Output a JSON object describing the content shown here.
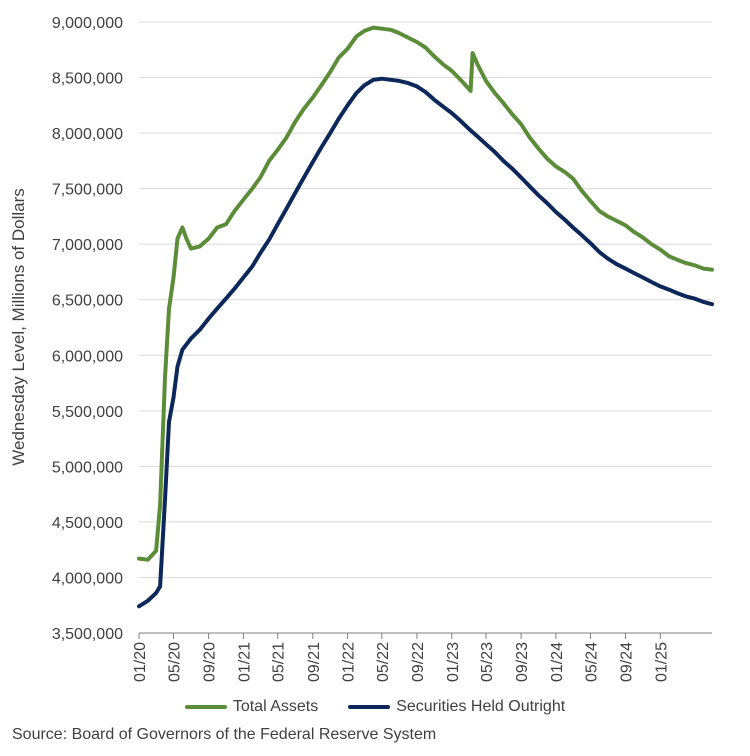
{
  "chart_data": {
    "type": "line",
    "title": "",
    "ylabel": "Wednesday Level, Millions of Dollars",
    "xlabel": "",
    "ylim": [
      3500000,
      9000000
    ],
    "yticks": [
      3500000,
      4000000,
      4500000,
      5000000,
      5500000,
      6000000,
      6500000,
      7000000,
      7500000,
      8000000,
      8500000,
      9000000
    ],
    "ytick_labels": [
      "3,500,000",
      "4,000,000",
      "4,500,000",
      "5,000,000",
      "5,500,000",
      "6,000,000",
      "6,500,000",
      "7,000,000",
      "7,500,000",
      "8,000,000",
      "8,500,000",
      "9,000,000"
    ],
    "xlim": [
      "2020-01",
      "2025-07"
    ],
    "xticks": [
      "2020-01",
      "2020-05",
      "2020-09",
      "2021-01",
      "2021-05",
      "2021-09",
      "2022-01",
      "2022-05",
      "2022-09",
      "2023-01",
      "2023-05",
      "2023-09",
      "2024-01",
      "2024-05",
      "2024-09",
      "2025-01"
    ],
    "xtick_labels": [
      "01/20",
      "05/20",
      "09/20",
      "01/21",
      "05/21",
      "09/21",
      "01/22",
      "05/22",
      "09/22",
      "01/23",
      "05/23",
      "09/23",
      "01/24",
      "05/24",
      "09/24",
      "01/25"
    ],
    "grid": "horizontal",
    "legend_position": "bottom",
    "series": [
      {
        "name": "Total Assets",
        "color": "#5b8c38",
        "x": [
          "2020-01-01",
          "2020-02-01",
          "2020-03-01",
          "2020-03-15",
          "2020-04-01",
          "2020-04-15",
          "2020-05-01",
          "2020-05-15",
          "2020-06-01",
          "2020-06-15",
          "2020-07-01",
          "2020-08-01",
          "2020-09-01",
          "2020-10-01",
          "2020-11-01",
          "2020-12-01",
          "2021-01-01",
          "2021-02-01",
          "2021-03-01",
          "2021-04-01",
          "2021-05-01",
          "2021-06-01",
          "2021-07-01",
          "2021-08-01",
          "2021-09-01",
          "2021-10-01",
          "2021-11-01",
          "2021-12-01",
          "2022-01-01",
          "2022-02-01",
          "2022-03-01",
          "2022-04-01",
          "2022-05-01",
          "2022-06-01",
          "2022-07-01",
          "2022-08-01",
          "2022-09-01",
          "2022-10-01",
          "2022-11-01",
          "2022-12-01",
          "2023-01-01",
          "2023-02-01",
          "2023-03-08",
          "2023-03-15",
          "2023-04-01",
          "2023-05-01",
          "2023-06-01",
          "2023-07-01",
          "2023-08-01",
          "2023-09-01",
          "2023-10-01",
          "2023-11-01",
          "2023-12-01",
          "2024-01-01",
          "2024-02-01",
          "2024-03-01",
          "2024-04-01",
          "2024-05-01",
          "2024-06-01",
          "2024-07-01",
          "2024-08-01",
          "2024-09-01",
          "2024-10-01",
          "2024-11-01",
          "2024-12-01",
          "2025-01-01",
          "2025-02-01",
          "2025-03-01",
          "2025-04-01",
          "2025-05-01",
          "2025-06-01",
          "2025-07-01"
        ],
        "values": [
          4170000,
          4160000,
          4240000,
          4650000,
          5800000,
          6420000,
          6700000,
          7050000,
          7150000,
          7050000,
          6960000,
          6980000,
          7050000,
          7150000,
          7180000,
          7300000,
          7400000,
          7500000,
          7600000,
          7750000,
          7850000,
          7960000,
          8100000,
          8220000,
          8320000,
          8430000,
          8550000,
          8680000,
          8760000,
          8870000,
          8920000,
          8950000,
          8940000,
          8930000,
          8900000,
          8860000,
          8820000,
          8770000,
          8690000,
          8620000,
          8560000,
          8480000,
          8380000,
          8720000,
          8620000,
          8470000,
          8360000,
          8270000,
          8170000,
          8080000,
          7960000,
          7860000,
          7770000,
          7700000,
          7650000,
          7590000,
          7480000,
          7390000,
          7300000,
          7250000,
          7210000,
          7170000,
          7110000,
          7060000,
          7000000,
          6950000,
          6890000,
          6860000,
          6830000,
          6810000,
          6780000,
          6770000
        ]
      },
      {
        "name": "Securities Held Outright",
        "color": "#0c2759",
        "x": [
          "2020-01-01",
          "2020-02-01",
          "2020-03-01",
          "2020-03-15",
          "2020-04-01",
          "2020-04-15",
          "2020-05-01",
          "2020-05-15",
          "2020-06-01",
          "2020-07-01",
          "2020-08-01",
          "2020-09-01",
          "2020-10-01",
          "2020-11-01",
          "2020-12-01",
          "2021-01-01",
          "2021-02-01",
          "2021-03-01",
          "2021-04-01",
          "2021-05-01",
          "2021-06-01",
          "2021-07-01",
          "2021-08-01",
          "2021-09-01",
          "2021-10-01",
          "2021-11-01",
          "2021-12-01",
          "2022-01-01",
          "2022-02-01",
          "2022-03-01",
          "2022-04-01",
          "2022-05-01",
          "2022-06-01",
          "2022-07-01",
          "2022-08-01",
          "2022-09-01",
          "2022-10-01",
          "2022-11-01",
          "2022-12-01",
          "2023-01-01",
          "2023-02-01",
          "2023-03-01",
          "2023-04-01",
          "2023-05-01",
          "2023-06-01",
          "2023-07-01",
          "2023-08-01",
          "2023-09-01",
          "2023-10-01",
          "2023-11-01",
          "2023-12-01",
          "2024-01-01",
          "2024-02-01",
          "2024-03-01",
          "2024-04-01",
          "2024-05-01",
          "2024-06-01",
          "2024-07-01",
          "2024-08-01",
          "2024-09-01",
          "2024-10-01",
          "2024-11-01",
          "2024-12-01",
          "2025-01-01",
          "2025-02-01",
          "2025-03-01",
          "2025-04-01",
          "2025-05-01",
          "2025-06-01",
          "2025-07-01"
        ],
        "values": [
          3740000,
          3790000,
          3860000,
          3920000,
          4700000,
          5400000,
          5620000,
          5900000,
          6050000,
          6150000,
          6230000,
          6330000,
          6420000,
          6510000,
          6600000,
          6700000,
          6800000,
          6920000,
          7040000,
          7180000,
          7320000,
          7460000,
          7600000,
          7740000,
          7870000,
          8000000,
          8130000,
          8250000,
          8360000,
          8430000,
          8480000,
          8490000,
          8480000,
          8470000,
          8450000,
          8420000,
          8370000,
          8300000,
          8240000,
          8180000,
          8110000,
          8040000,
          7970000,
          7900000,
          7830000,
          7750000,
          7680000,
          7600000,
          7520000,
          7440000,
          7370000,
          7290000,
          7220000,
          7150000,
          7080000,
          7010000,
          6930000,
          6870000,
          6820000,
          6780000,
          6740000,
          6700000,
          6660000,
          6620000,
          6590000,
          6560000,
          6530000,
          6510000,
          6480000,
          6460000
        ]
      }
    ]
  },
  "source": "Source: Board of Governors of the Federal Reserve System"
}
